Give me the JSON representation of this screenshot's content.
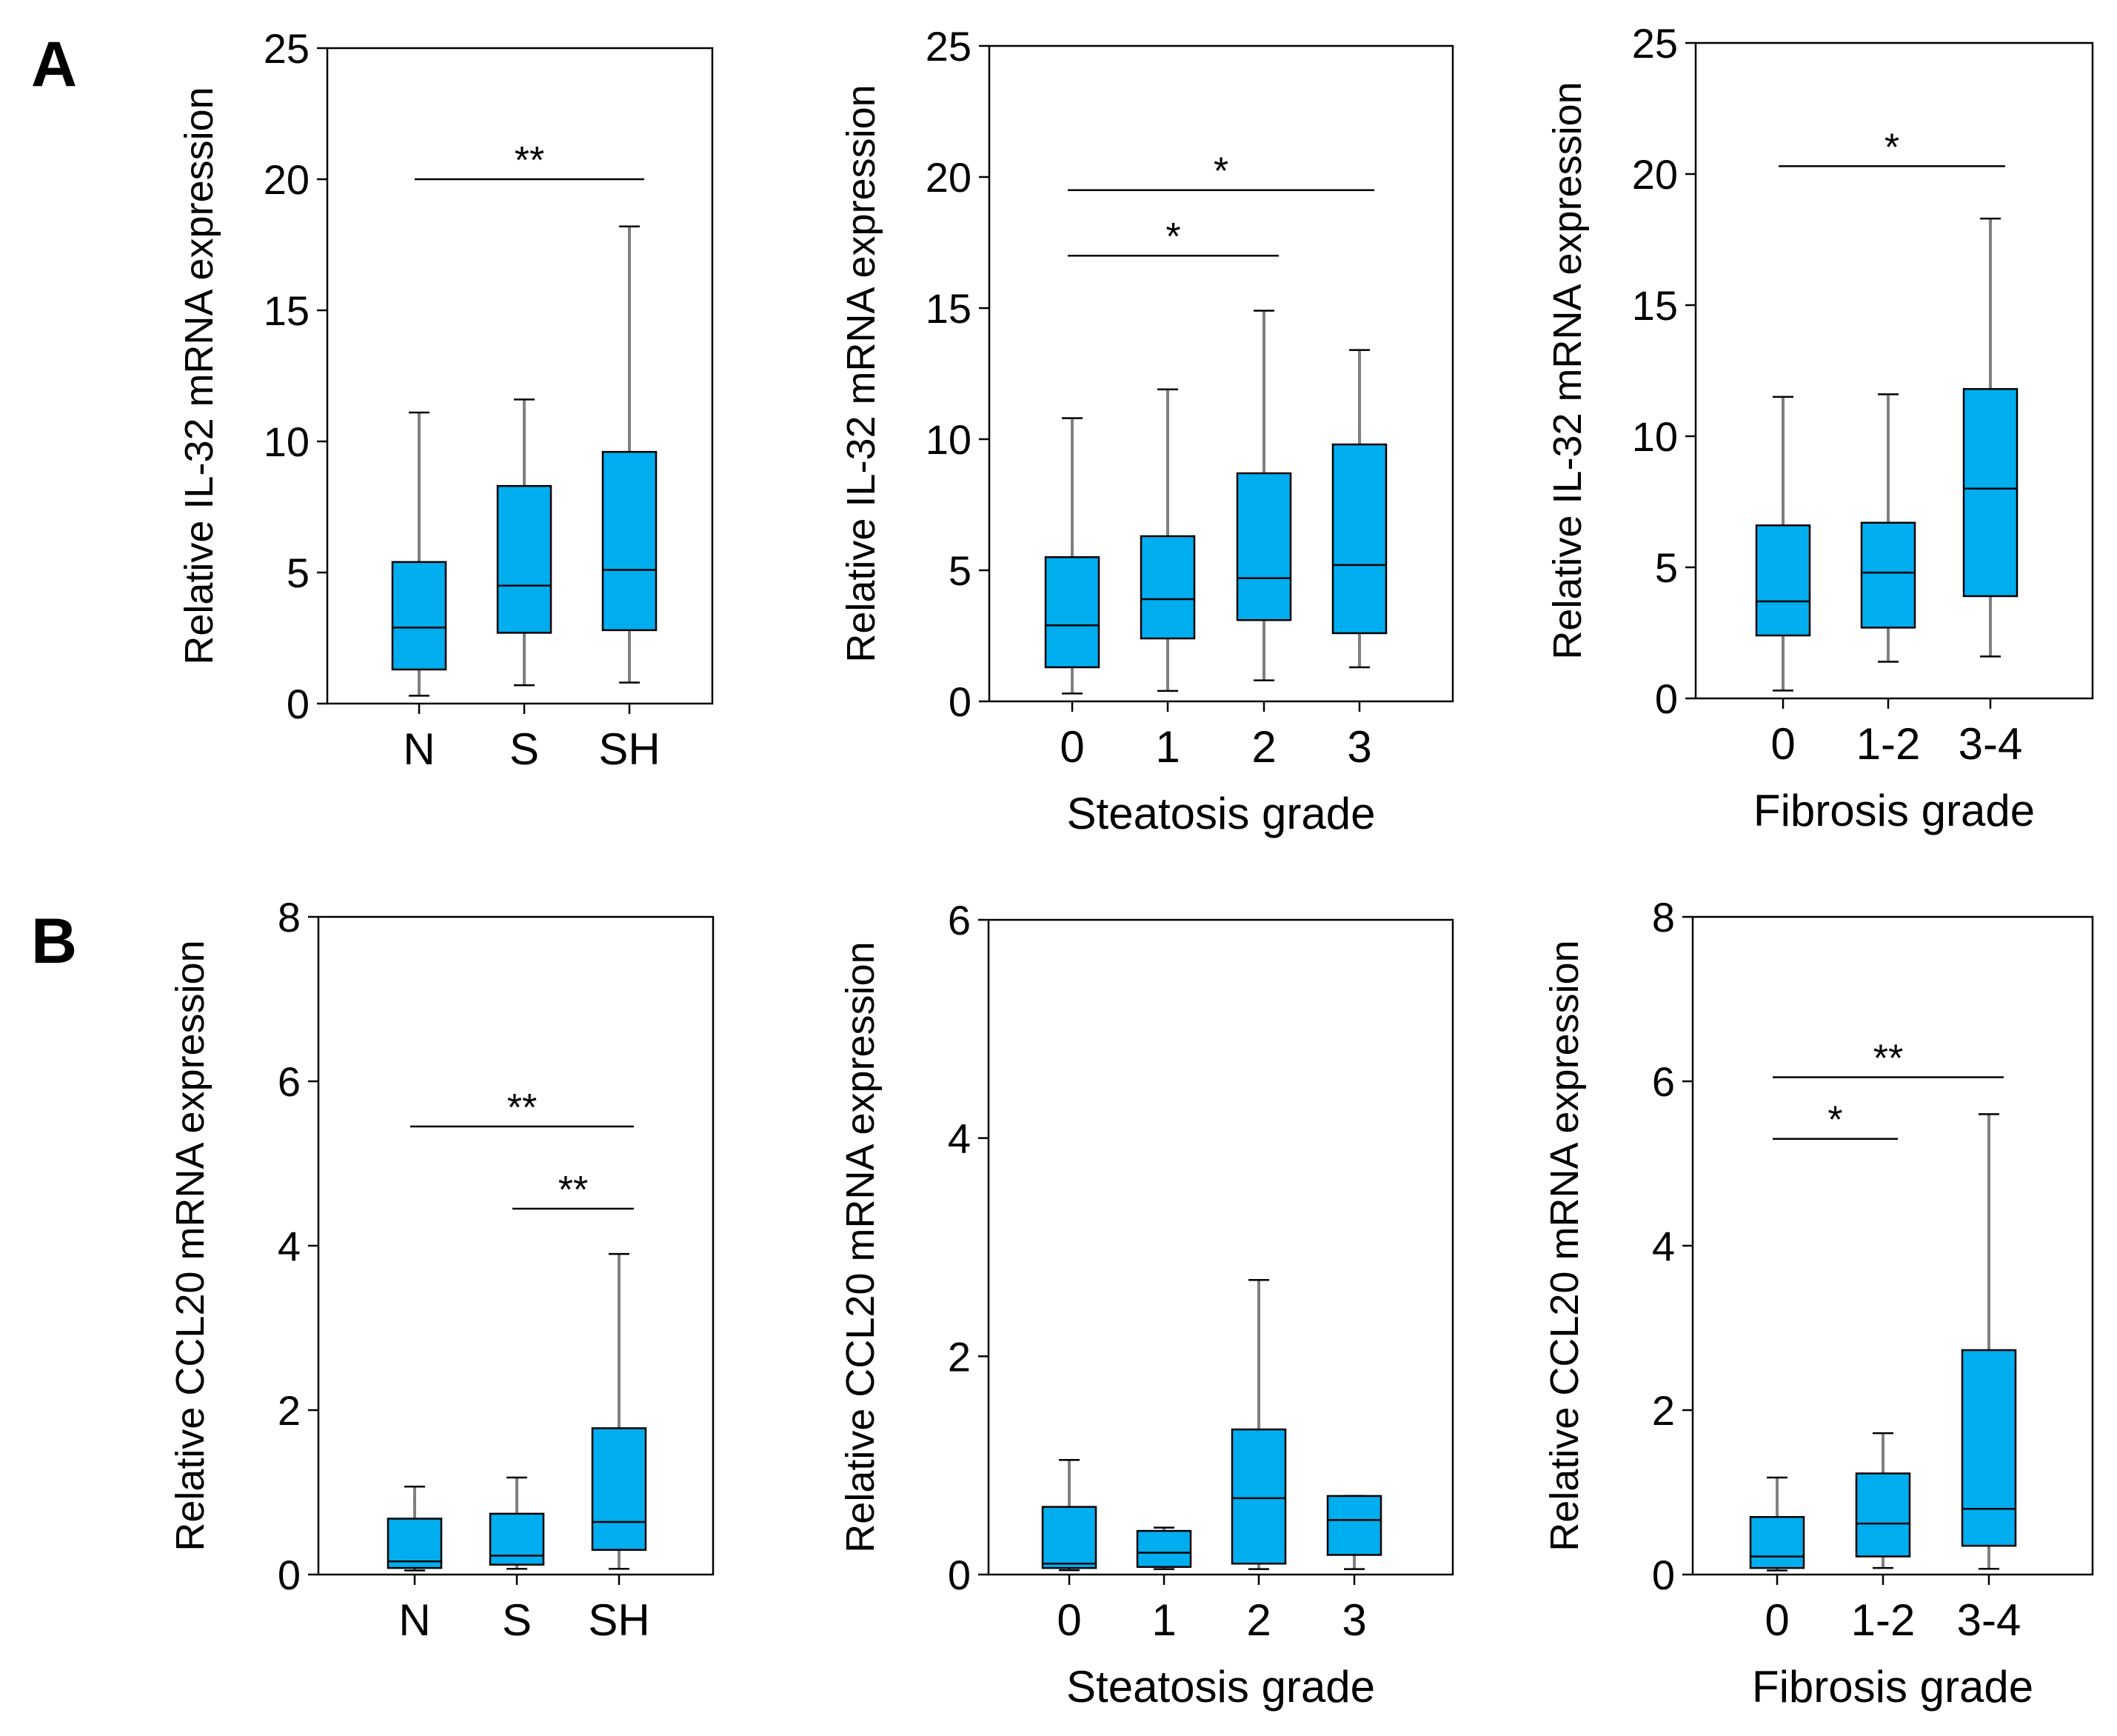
{
  "panel_labels": [
    "A",
    "B"
  ],
  "colors": {
    "box_fill": "#00AEEF",
    "box_edge": "#000000",
    "whisker": "#808080",
    "axis": "#000000"
  },
  "chart_data": [
    {
      "type": "boxplot",
      "panel": "A",
      "title": "",
      "xlabel": "",
      "ylabel": "Relative  IL-32 mRNA  expression",
      "ylim": [
        0,
        25
      ],
      "yticks": [
        0,
        5,
        10,
        15,
        20,
        25
      ],
      "categories": [
        "N",
        "S",
        "SH"
      ],
      "boxes": [
        {
          "min": 0.3,
          "q1": 1.3,
          "median": 2.9,
          "q3": 5.4,
          "max": 11.1
        },
        {
          "min": 0.7,
          "q1": 2.7,
          "median": 4.5,
          "q3": 8.3,
          "max": 11.6
        },
        {
          "min": 0.8,
          "q1": 2.8,
          "median": 5.1,
          "q3": 9.6,
          "max": 18.2
        }
      ],
      "significance": [
        {
          "from": 0,
          "to": 2,
          "level": 20.0,
          "label": "**"
        }
      ]
    },
    {
      "type": "boxplot",
      "panel": "A",
      "title": "",
      "xlabel": "Steatosis grade",
      "ylabel": "Relative  IL-32 mRNA  expression",
      "ylim": [
        0,
        25
      ],
      "yticks": [
        0,
        5,
        10,
        15,
        20,
        25
      ],
      "categories": [
        "0",
        "1",
        "2",
        "3"
      ],
      "boxes": [
        {
          "min": 0.3,
          "q1": 1.3,
          "median": 2.9,
          "q3": 5.5,
          "max": 10.8
        },
        {
          "min": 0.4,
          "q1": 2.4,
          "median": 3.9,
          "q3": 6.3,
          "max": 11.9
        },
        {
          "min": 0.8,
          "q1": 3.1,
          "median": 4.7,
          "q3": 8.7,
          "max": 14.9
        },
        {
          "min": 1.3,
          "q1": 2.6,
          "median": 5.2,
          "q3": 9.8,
          "max": 13.4
        }
      ],
      "significance": [
        {
          "from": 0,
          "to": 3,
          "level": 19.5,
          "label": "*"
        },
        {
          "from": 0,
          "to": 2,
          "level": 17.0,
          "label": "*"
        }
      ]
    },
    {
      "type": "boxplot",
      "panel": "A",
      "title": "",
      "xlabel": "Fibrosis grade",
      "ylabel": "Relative  IL-32 mRNA  expression",
      "ylim": [
        0,
        25
      ],
      "yticks": [
        0,
        5,
        10,
        15,
        20,
        25
      ],
      "categories": [
        "0",
        "1-2",
        "3-4"
      ],
      "boxes": [
        {
          "min": 0.3,
          "q1": 2.4,
          "median": 3.7,
          "q3": 6.6,
          "max": 11.5
        },
        {
          "min": 1.4,
          "q1": 2.7,
          "median": 4.8,
          "q3": 6.7,
          "max": 11.6
        },
        {
          "min": 1.6,
          "q1": 3.9,
          "median": 8.0,
          "q3": 11.8,
          "max": 18.3
        }
      ],
      "significance": [
        {
          "from": 0,
          "to": 2,
          "level": 20.3,
          "label": "*"
        }
      ]
    },
    {
      "type": "boxplot",
      "panel": "B",
      "title": "",
      "xlabel": "",
      "ylabel": "Relative  CCL20 mRNA  expression",
      "ylim": [
        0,
        8
      ],
      "yticks": [
        0,
        2,
        4,
        6,
        8
      ],
      "categories": [
        "N",
        "S",
        "SH"
      ],
      "boxes": [
        {
          "min": 0.05,
          "q1": 0.08,
          "median": 0.16,
          "q3": 0.68,
          "max": 1.07
        },
        {
          "min": 0.07,
          "q1": 0.12,
          "median": 0.23,
          "q3": 0.74,
          "max": 1.18
        },
        {
          "min": 0.07,
          "q1": 0.3,
          "median": 0.64,
          "q3": 1.78,
          "max": 3.9
        }
      ],
      "significance": [
        {
          "from": 0,
          "to": 2,
          "level": 5.45,
          "label": "**"
        },
        {
          "from": 1,
          "to": 2,
          "level": 4.45,
          "label": "**"
        }
      ]
    },
    {
      "type": "boxplot",
      "panel": "B",
      "title": "",
      "xlabel": "Steatosis grade",
      "ylabel": "Relative  CCL20 mRNA  expression",
      "ylim": [
        0,
        6
      ],
      "yticks": [
        0,
        2,
        4,
        6
      ],
      "categories": [
        "0",
        "1",
        "2",
        "3"
      ],
      "boxes": [
        {
          "min": 0.04,
          "q1": 0.06,
          "median": 0.1,
          "q3": 0.62,
          "max": 1.05
        },
        {
          "min": 0.05,
          "q1": 0.07,
          "median": 0.2,
          "q3": 0.4,
          "max": 0.43
        },
        {
          "min": 0.05,
          "q1": 0.1,
          "median": 0.7,
          "q3": 1.33,
          "max": 2.7
        },
        {
          "min": 0.05,
          "q1": 0.18,
          "median": 0.5,
          "q3": 0.72,
          "max": 0.72
        }
      ],
      "significance": []
    },
    {
      "type": "boxplot",
      "panel": "B",
      "title": "",
      "xlabel": "Fibrosis grade",
      "ylabel": "Relative  CCL20 mRNA  expression",
      "ylim": [
        0,
        8
      ],
      "yticks": [
        0,
        2,
        4,
        6,
        8
      ],
      "categories": [
        "0",
        "1-2",
        "3-4"
      ],
      "boxes": [
        {
          "min": 0.05,
          "q1": 0.08,
          "median": 0.22,
          "q3": 0.7,
          "max": 1.18
        },
        {
          "min": 0.08,
          "q1": 0.22,
          "median": 0.62,
          "q3": 1.23,
          "max": 1.72
        },
        {
          "min": 0.07,
          "q1": 0.35,
          "median": 0.8,
          "q3": 2.73,
          "max": 5.6
        }
      ],
      "significance": [
        {
          "from": 0,
          "to": 2,
          "level": 6.05,
          "label": "**"
        },
        {
          "from": 0,
          "to": 1,
          "level": 5.3,
          "label": "*"
        }
      ]
    }
  ]
}
